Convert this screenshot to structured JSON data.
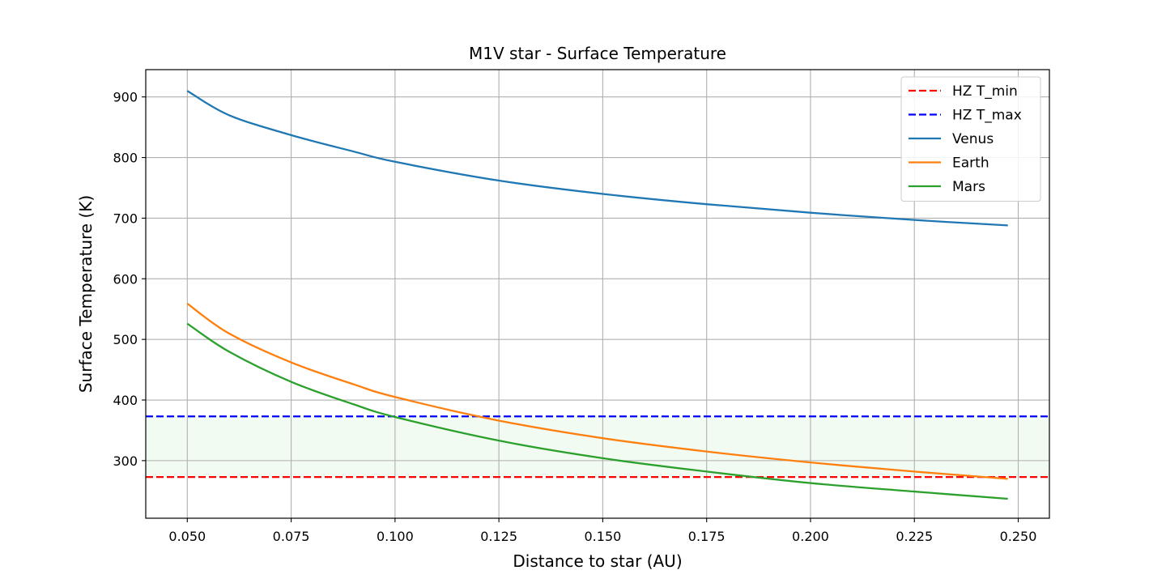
{
  "chart_data": {
    "type": "line",
    "title": "M1V star - Surface Temperature",
    "xlabel": "Distance to star (AU)",
    "ylabel": "Surface Temperature (K)",
    "xlim": [
      0.04,
      0.2575
    ],
    "ylim": [
      205,
      945
    ],
    "xticks": [
      0.05,
      0.075,
      0.1,
      0.125,
      0.15,
      0.175,
      0.2,
      0.225,
      0.25
    ],
    "xtick_labels": [
      "0.050",
      "0.075",
      "0.100",
      "0.125",
      "0.150",
      "0.175",
      "0.200",
      "0.225",
      "0.250"
    ],
    "yticks": [
      300,
      400,
      500,
      600,
      700,
      800,
      900
    ],
    "ytick_labels": [
      "300",
      "400",
      "500",
      "600",
      "700",
      "800",
      "900"
    ],
    "grid": true,
    "legend_position": "top-right",
    "legend": [
      "HZ T_min",
      "HZ T_max",
      "Venus",
      "Earth",
      "Mars"
    ],
    "hz_band": {
      "y_min": 273,
      "y_max": 373,
      "color": "#e7f7e7"
    },
    "hlines": [
      {
        "name": "HZ T_min",
        "y": 273,
        "color": "#ff0000",
        "style": "dashed"
      },
      {
        "name": "HZ T_max",
        "y": 373,
        "color": "#0000ff",
        "style": "dashed"
      }
    ],
    "series": [
      {
        "name": "Venus",
        "color": "#1f77b4",
        "x": [
          0.05,
          0.06,
          0.075,
          0.09,
          0.1,
          0.125,
          0.15,
          0.175,
          0.2,
          0.225,
          0.2475
        ],
        "y": [
          910,
          870,
          837,
          810,
          793,
          762,
          740,
          723,
          709,
          697,
          688
        ]
      },
      {
        "name": "Earth",
        "color": "#ff7f0e",
        "x": [
          0.05,
          0.06,
          0.075,
          0.09,
          0.1,
          0.125,
          0.15,
          0.175,
          0.2,
          0.225,
          0.2475
        ],
        "y": [
          559,
          510,
          462,
          426,
          405,
          366,
          337,
          315,
          297,
          282,
          270
        ]
      },
      {
        "name": "Mars",
        "color": "#2ca02c",
        "x": [
          0.05,
          0.06,
          0.075,
          0.09,
          0.1,
          0.125,
          0.15,
          0.175,
          0.2,
          0.225,
          0.2475
        ],
        "y": [
          526,
          480,
          430,
          393,
          372,
          333,
          304,
          282,
          263,
          249,
          237
        ]
      }
    ]
  }
}
